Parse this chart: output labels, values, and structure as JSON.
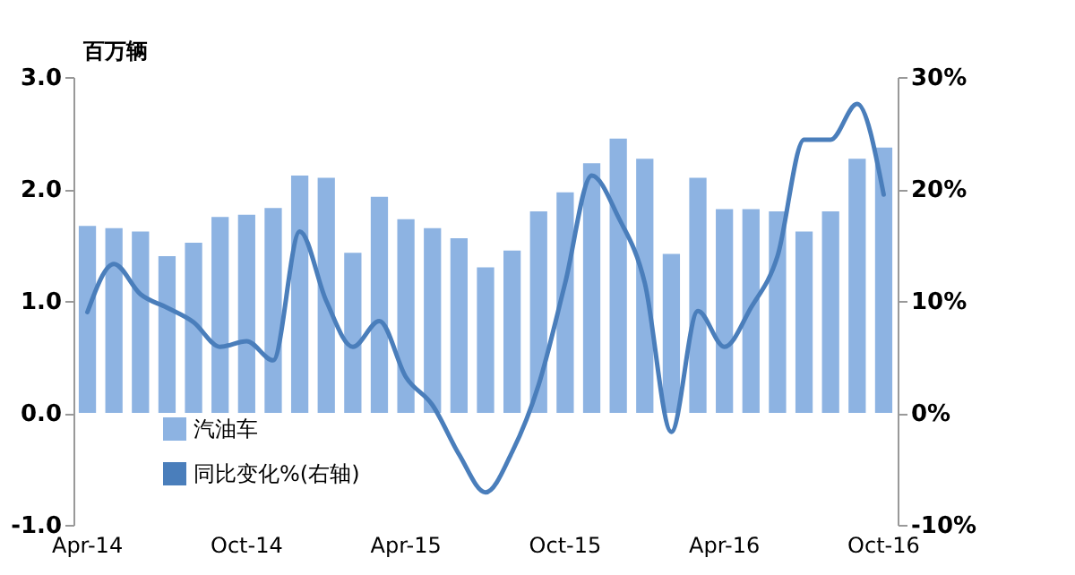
{
  "chart_data": {
    "type": "bar",
    "ylabel": "百万辆",
    "categories": [
      "Apr-14",
      null,
      null,
      null,
      null,
      null,
      "Oct-14",
      null,
      null,
      null,
      null,
      null,
      "Apr-15",
      null,
      null,
      null,
      null,
      null,
      "Oct-15",
      null,
      null,
      null,
      null,
      null,
      "Apr-16",
      null,
      null,
      null,
      null,
      null,
      "Oct-16"
    ],
    "series": [
      {
        "name": "汽油车",
        "color": "#8db3e2",
        "values": [
          1.67,
          1.65,
          1.62,
          1.4,
          1.52,
          1.75,
          1.77,
          1.83,
          2.12,
          2.1,
          1.43,
          1.93,
          1.73,
          1.65,
          1.56,
          1.3,
          1.45,
          1.8,
          1.97,
          2.23,
          2.45,
          2.27,
          1.42,
          2.1,
          1.82,
          1.82,
          1.8,
          1.62,
          1.8,
          2.27,
          2.37
        ]
      },
      {
        "name": "同比变化%(右轴)",
        "type": "line",
        "axis": "y2",
        "color": "#4a7ebb",
        "values": [
          9,
          13.3,
          10.6,
          9.4,
          8.1,
          5.9,
          6.4,
          4.7,
          16.2,
          10,
          5.9,
          8.2,
          3.2,
          0.7,
          -3.7,
          -7.1,
          -3.5,
          2.5,
          11.6,
          21.2,
          17.5,
          11.6,
          -1.7,
          9.1,
          5.9,
          9.4,
          14,
          24.4,
          24.4,
          27.6,
          19.5
        ]
      }
    ],
    "ylim": [
      -1,
      3
    ],
    "yticks": [
      {
        "value": -1,
        "label": "-1.0"
      },
      {
        "value": 0,
        "label": "0.0"
      },
      {
        "value": 1,
        "label": "1.0"
      },
      {
        "value": 2,
        "label": "2.0"
      },
      {
        "value": 3,
        "label": "3.0"
      }
    ],
    "y2lim": [
      -10,
      30
    ],
    "y2ticks": [
      {
        "value": -10,
        "label": "-10%"
      },
      {
        "value": 0,
        "label": "0%"
      },
      {
        "value": 10,
        "label": "10%"
      },
      {
        "value": 20,
        "label": "20%"
      },
      {
        "value": 30,
        "label": "30%"
      }
    ],
    "grid": false,
    "legend": "bottom left",
    "line_style": "solid",
    "marker": "none"
  }
}
